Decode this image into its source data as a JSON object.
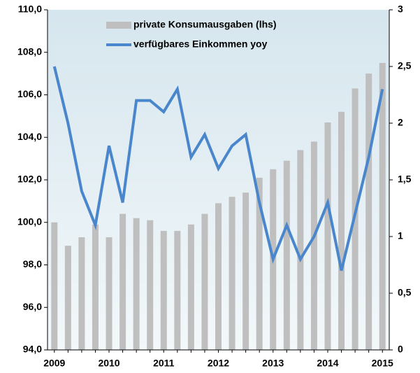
{
  "chart_data": {
    "type": "bar_line",
    "categories": [
      "2009",
      null,
      null,
      null,
      "2010",
      null,
      null,
      null,
      "2011",
      null,
      null,
      null,
      "2012",
      null,
      null,
      null,
      "2013",
      null,
      null,
      null,
      "2014",
      null,
      null,
      null,
      "2015"
    ],
    "series": [
      {
        "name": "private Konsumausgaben (lhs)",
        "type": "bar",
        "color": "#bfbfbf",
        "values": [
          100.0,
          98.9,
          99.3,
          99.9,
          99.3,
          100.4,
          100.2,
          100.1,
          99.6,
          99.6,
          99.9,
          100.4,
          100.9,
          101.2,
          101.4,
          102.1,
          102.5,
          102.9,
          103.4,
          103.8,
          104.7,
          105.2,
          106.3,
          107.0,
          107.5
        ]
      },
      {
        "name": "verfügbares Einkommen yoy",
        "type": "line",
        "axis": "y2",
        "color": "#4a86cc",
        "values": [
          2.5,
          2.0,
          1.4,
          1.1,
          1.8,
          1.3,
          2.2,
          2.2,
          2.1,
          2.3,
          1.7,
          1.9,
          1.6,
          1.8,
          1.9,
          1.3,
          0.8,
          1.1,
          0.8,
          1.0,
          1.3,
          0.7,
          1.2,
          1.7,
          2.3
        ]
      }
    ],
    "ylim": [
      94,
      110
    ],
    "yticks": [
      {
        "value": 94,
        "label": "94,0"
      },
      {
        "value": 96,
        "label": "96,0"
      },
      {
        "value": 98,
        "label": "98,0"
      },
      {
        "value": 100,
        "label": "100,0"
      },
      {
        "value": 102,
        "label": "102,0"
      },
      {
        "value": 104,
        "label": "104,0"
      },
      {
        "value": 106,
        "label": "106,0"
      },
      {
        "value": 108,
        "label": "108,0"
      },
      {
        "value": 110,
        "label": "110,0"
      }
    ],
    "y2lim": [
      0,
      3
    ],
    "y2ticks": [
      0,
      {
        "value": 0.5,
        "label": "0,5"
      },
      1,
      {
        "value": 1.5,
        "label": "1,5"
      },
      2,
      {
        "value": 2.5,
        "label": "2,5"
      },
      3
    ],
    "legend": "top"
  }
}
